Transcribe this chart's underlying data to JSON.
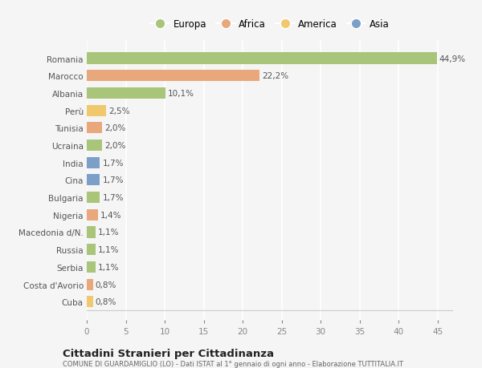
{
  "categories": [
    "Romania",
    "Marocco",
    "Albania",
    "Perù",
    "Tunisia",
    "Ucraina",
    "India",
    "Cina",
    "Bulgaria",
    "Nigeria",
    "Macedonia d/N.",
    "Russia",
    "Serbia",
    "Costa d'Avorio",
    "Cuba"
  ],
  "values": [
    44.9,
    22.2,
    10.1,
    2.5,
    2.0,
    2.0,
    1.7,
    1.7,
    1.7,
    1.4,
    1.1,
    1.1,
    1.1,
    0.8,
    0.8
  ],
  "labels": [
    "44,9%",
    "22,2%",
    "10,1%",
    "2,5%",
    "2,0%",
    "2,0%",
    "1,7%",
    "1,7%",
    "1,7%",
    "1,4%",
    "1,1%",
    "1,1%",
    "1,1%",
    "0,8%",
    "0,8%"
  ],
  "colors": [
    "#a8c57a",
    "#e8a87c",
    "#a8c57a",
    "#f0c96e",
    "#e8a87c",
    "#a8c57a",
    "#7b9fc7",
    "#7b9fc7",
    "#a8c57a",
    "#e8a87c",
    "#a8c57a",
    "#a8c57a",
    "#a8c57a",
    "#e8a87c",
    "#f0c96e"
  ],
  "legend_labels": [
    "Europa",
    "Africa",
    "America",
    "Asia"
  ],
  "legend_colors": [
    "#a8c57a",
    "#e8a87c",
    "#f0c96e",
    "#7b9fc7"
  ],
  "title": "Cittadini Stranieri per Cittadinanza",
  "subtitle": "COMUNE DI GUARDAMIGLIO (LO) - Dati ISTAT al 1° gennaio di ogni anno - Elaborazione TUTTITALIA.IT",
  "xlim": [
    0,
    47
  ],
  "xticks": [
    0,
    5,
    10,
    15,
    20,
    25,
    30,
    35,
    40,
    45
  ],
  "bg_color": "#f5f5f5",
  "grid_color": "#ffffff",
  "bar_height": 0.65,
  "label_fontsize": 7.5,
  "ytick_fontsize": 7.5,
  "xtick_fontsize": 7.5
}
